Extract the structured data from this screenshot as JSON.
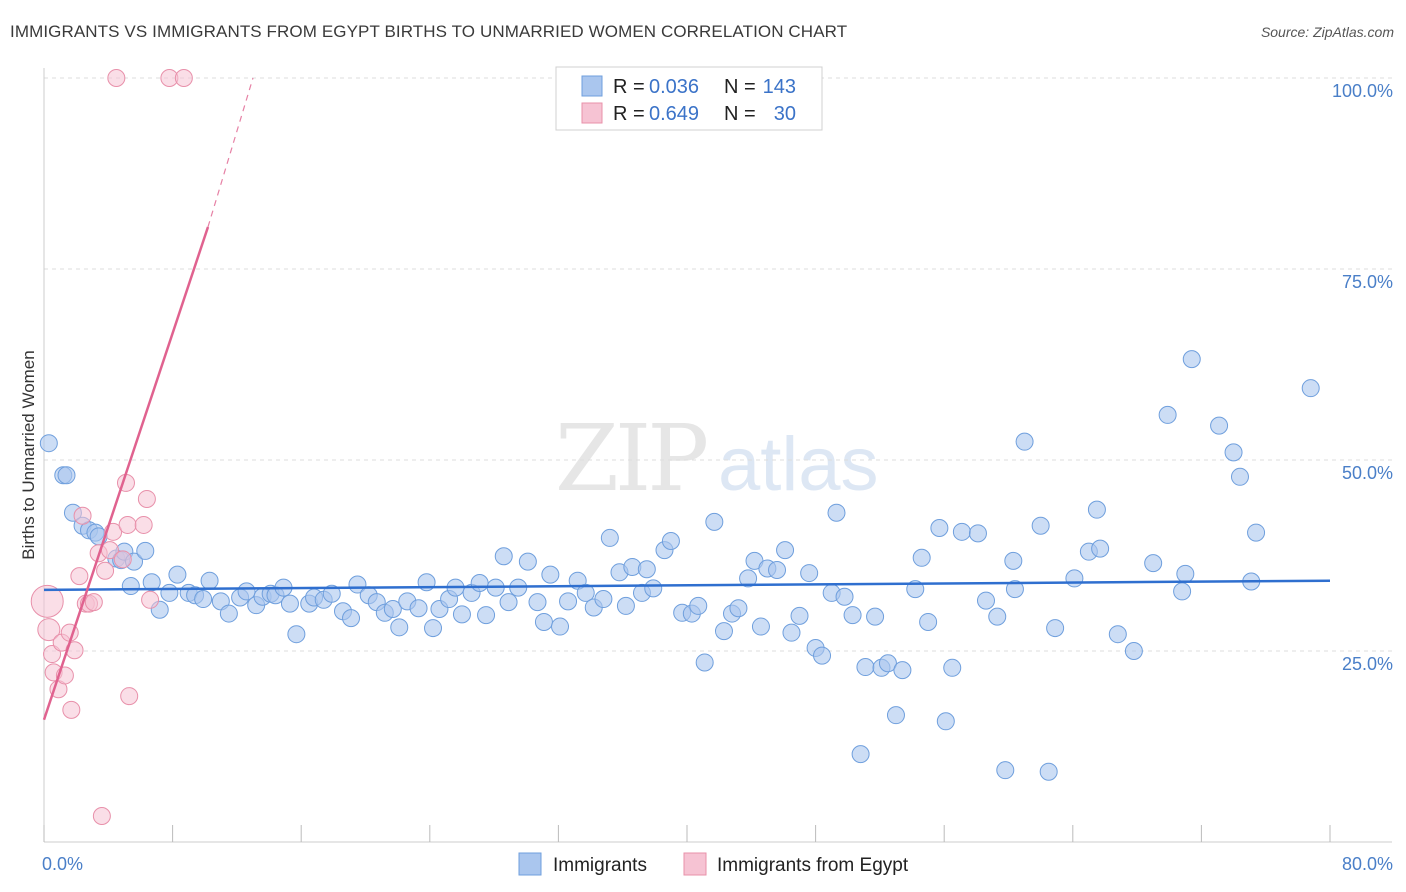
{
  "title": "IMMIGRANTS VS IMMIGRANTS FROM EGYPT BIRTHS TO UNMARRIED WOMEN CORRELATION CHART",
  "source": "Source: ZipAtlas.com",
  "watermark": {
    "zip": "ZIP",
    "atlas": "atlas"
  },
  "colors": {
    "blue_fill": "#aac6ee",
    "blue_stroke": "#6f9fdd",
    "blue_line": "#2f6fcf",
    "pink_fill": "#f6c3d3",
    "pink_stroke": "#e890aa",
    "pink_line": "#e0628f",
    "grid": "#dddddd",
    "tick_text": "#4a7fc8"
  },
  "legend": {
    "r_label": "R =",
    "n_label": "N =",
    "rows": [
      {
        "r": "0.036",
        "n": "143"
      },
      {
        "r": "0.649",
        "n": "30"
      }
    ]
  },
  "chart_data": {
    "type": "scatter",
    "xlabel": "",
    "ylabel": "Births to Unmarried Women",
    "xlim": [
      0,
      80
    ],
    "ylim": [
      0,
      100
    ],
    "x_tick_labels": [
      "0.0%",
      "80.0%"
    ],
    "y_ticks": [
      25,
      50,
      75,
      100
    ],
    "y_tick_labels": [
      "25.0%",
      "50.0%",
      "75.0%",
      "100.0%"
    ],
    "grid": true,
    "legend_position": "top-center",
    "series": [
      {
        "name": "Immigrants",
        "trend": {
          "x": [
            0,
            80
          ],
          "y": [
            33.0,
            34.2
          ]
        },
        "points": [
          [
            0.3,
            52.2
          ],
          [
            1.2,
            48.0
          ],
          [
            1.4,
            48.0
          ],
          [
            1.8,
            43.1
          ],
          [
            2.4,
            41.4
          ],
          [
            2.8,
            40.8
          ],
          [
            3.2,
            40.5
          ],
          [
            3.4,
            40.0
          ],
          [
            4.5,
            37.1
          ],
          [
            4.8,
            36.9
          ],
          [
            5.0,
            38.0
          ],
          [
            5.4,
            33.5
          ],
          [
            5.6,
            36.7
          ],
          [
            6.3,
            38.1
          ],
          [
            6.7,
            34.0
          ],
          [
            7.2,
            30.4
          ],
          [
            7.8,
            32.6
          ],
          [
            8.3,
            35.0
          ],
          [
            9.0,
            32.6
          ],
          [
            9.4,
            32.3
          ],
          [
            9.9,
            31.8
          ],
          [
            10.3,
            34.2
          ],
          [
            11.0,
            31.5
          ],
          [
            11.5,
            29.9
          ],
          [
            12.2,
            32.0
          ],
          [
            12.6,
            32.8
          ],
          [
            13.2,
            31.0
          ],
          [
            13.6,
            32.1
          ],
          [
            14.1,
            32.5
          ],
          [
            14.4,
            32.3
          ],
          [
            14.9,
            33.3
          ],
          [
            15.3,
            31.2
          ],
          [
            15.7,
            27.2
          ],
          [
            16.5,
            31.2
          ],
          [
            16.8,
            32.0
          ],
          [
            17.4,
            31.7
          ],
          [
            17.9,
            32.5
          ],
          [
            18.6,
            30.2
          ],
          [
            19.1,
            29.3
          ],
          [
            19.5,
            33.7
          ],
          [
            20.2,
            32.3
          ],
          [
            20.7,
            31.4
          ],
          [
            21.2,
            30.0
          ],
          [
            21.7,
            30.5
          ],
          [
            22.1,
            28.1
          ],
          [
            22.6,
            31.5
          ],
          [
            23.3,
            30.6
          ],
          [
            23.8,
            34.0
          ],
          [
            24.2,
            28.0
          ],
          [
            24.6,
            30.5
          ],
          [
            25.2,
            31.8
          ],
          [
            25.6,
            33.3
          ],
          [
            26.0,
            29.8
          ],
          [
            26.6,
            32.6
          ],
          [
            27.1,
            33.9
          ],
          [
            27.5,
            29.7
          ],
          [
            28.1,
            33.3
          ],
          [
            28.6,
            37.4
          ],
          [
            28.9,
            31.4
          ],
          [
            29.5,
            33.3
          ],
          [
            30.1,
            36.7
          ],
          [
            30.7,
            31.4
          ],
          [
            31.1,
            28.8
          ],
          [
            31.5,
            35.0
          ],
          [
            32.1,
            28.2
          ],
          [
            32.6,
            31.5
          ],
          [
            33.2,
            34.2
          ],
          [
            33.7,
            32.6
          ],
          [
            34.2,
            30.7
          ],
          [
            34.8,
            31.8
          ],
          [
            35.2,
            39.8
          ],
          [
            35.8,
            35.3
          ],
          [
            36.2,
            30.9
          ],
          [
            36.6,
            36.0
          ],
          [
            37.2,
            32.6
          ],
          [
            37.5,
            35.7
          ],
          [
            37.9,
            33.2
          ],
          [
            38.6,
            38.2
          ],
          [
            39.0,
            39.4
          ],
          [
            39.7,
            30.0
          ],
          [
            40.3,
            29.9
          ],
          [
            40.7,
            30.9
          ],
          [
            41.1,
            23.5
          ],
          [
            41.7,
            41.9
          ],
          [
            42.3,
            27.6
          ],
          [
            42.8,
            29.9
          ],
          [
            43.2,
            30.6
          ],
          [
            43.8,
            34.5
          ],
          [
            44.2,
            36.8
          ],
          [
            44.6,
            28.2
          ],
          [
            45.0,
            35.8
          ],
          [
            45.6,
            35.6
          ],
          [
            46.1,
            38.2
          ],
          [
            46.5,
            27.4
          ],
          [
            47.0,
            29.6
          ],
          [
            47.6,
            35.2
          ],
          [
            48.0,
            25.4
          ],
          [
            48.4,
            24.4
          ],
          [
            49.0,
            32.6
          ],
          [
            49.3,
            43.1
          ],
          [
            49.8,
            32.1
          ],
          [
            50.3,
            29.7
          ],
          [
            50.8,
            11.5
          ],
          [
            51.1,
            22.9
          ],
          [
            51.7,
            29.5
          ],
          [
            52.1,
            22.8
          ],
          [
            52.5,
            23.4
          ],
          [
            53.0,
            16.6
          ],
          [
            53.4,
            22.5
          ],
          [
            54.2,
            33.1
          ],
          [
            54.6,
            37.2
          ],
          [
            55.0,
            28.8
          ],
          [
            55.7,
            41.1
          ],
          [
            56.1,
            15.8
          ],
          [
            56.5,
            22.8
          ],
          [
            57.1,
            40.6
          ],
          [
            58.1,
            40.4
          ],
          [
            58.6,
            31.6
          ],
          [
            59.3,
            29.5
          ],
          [
            59.8,
            9.4
          ],
          [
            60.4,
            33.1
          ],
          [
            60.3,
            36.8
          ],
          [
            61.0,
            52.4
          ],
          [
            62.0,
            41.4
          ],
          [
            62.5,
            9.2
          ],
          [
            62.9,
            28.0
          ],
          [
            64.1,
            34.5
          ],
          [
            65.0,
            38.0
          ],
          [
            65.5,
            43.5
          ],
          [
            65.7,
            38.4
          ],
          [
            66.8,
            27.2
          ],
          [
            67.8,
            25.0
          ],
          [
            69.0,
            36.5
          ],
          [
            69.9,
            55.9
          ],
          [
            70.8,
            32.8
          ],
          [
            71.0,
            35.1
          ],
          [
            71.4,
            63.2
          ],
          [
            73.1,
            54.5
          ],
          [
            74.0,
            51.0
          ],
          [
            74.4,
            47.8
          ],
          [
            75.1,
            34.1
          ],
          [
            75.4,
            40.5
          ],
          [
            78.8,
            59.4
          ]
        ]
      },
      {
        "name": "Immigrants from Egypt",
        "trend": {
          "x": [
            0,
            10.2
          ],
          "y": [
            16.0,
            80.5
          ]
        },
        "trend_dashed": {
          "x": [
            10.2,
            13.0
          ],
          "y": [
            80.5,
            100
          ]
        },
        "points": [
          [
            0.2,
            31.5
          ],
          [
            0.3,
            27.8
          ],
          [
            0.5,
            24.6
          ],
          [
            0.6,
            22.2
          ],
          [
            0.9,
            20.0
          ],
          [
            1.1,
            26.1
          ],
          [
            1.3,
            21.8
          ],
          [
            1.6,
            27.4
          ],
          [
            1.7,
            17.3
          ],
          [
            1.9,
            25.1
          ],
          [
            2.2,
            34.8
          ],
          [
            2.4,
            42.7
          ],
          [
            2.6,
            31.2
          ],
          [
            2.8,
            31.2
          ],
          [
            3.1,
            31.4
          ],
          [
            3.4,
            37.8
          ],
          [
            3.6,
            3.4
          ],
          [
            3.8,
            35.5
          ],
          [
            4.1,
            38.2
          ],
          [
            4.3,
            40.6
          ],
          [
            4.5,
            100
          ],
          [
            4.9,
            37.0
          ],
          [
            5.1,
            47.0
          ],
          [
            5.3,
            19.1
          ],
          [
            5.2,
            41.5
          ],
          [
            6.2,
            41.5
          ],
          [
            6.4,
            44.9
          ],
          [
            6.6,
            31.7
          ],
          [
            7.8,
            100
          ],
          [
            8.7,
            100
          ]
        ]
      }
    ]
  }
}
